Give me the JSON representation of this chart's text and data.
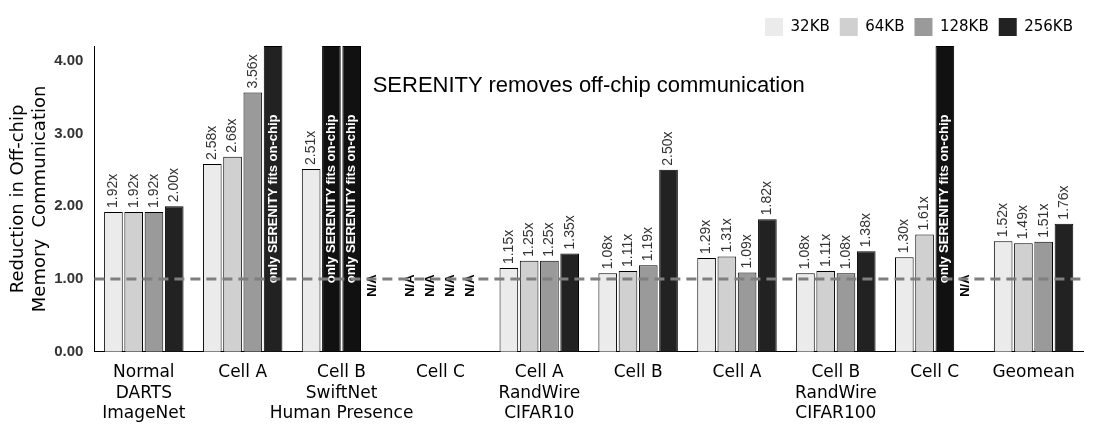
{
  "chart_data": {
    "type": "bar",
    "ylabel": "Reduction in Off-chip\nMemory  Communication",
    "categories": [
      "Normal\nDARTS\nImageNet",
      "Cell A",
      "Cell B\nSwiftNet\nHuman Presence",
      "Cell C",
      "Cell A\nRandWire\nCIFAR10",
      "Cell B",
      "Cell A",
      "Cell B\nRandWire\nCIFAR100",
      "Cell C",
      "Geomean"
    ],
    "series": [
      {
        "name": "32KB",
        "color": "#ebebeb",
        "values": [
          1.92,
          2.58,
          2.51,
          null,
          1.15,
          1.08,
          1.29,
          1.08,
          1.3,
          1.52
        ],
        "value_labels": [
          "1.92x",
          "2.58x",
          "2.51x",
          "N/A",
          "1.15x",
          "1.08x",
          "1.29x",
          "1.08x",
          "1.30x",
          "1.52x"
        ]
      },
      {
        "name": "64KB",
        "color": "#d0d0d0",
        "colors": [
          "#d0d0d0",
          "#d0d0d0",
          "#111111",
          "#d0d0d0",
          "#d0d0d0",
          "#d0d0d0",
          "#d0d0d0",
          "#d0d0d0",
          "#d0d0d0",
          "#d0d0d0"
        ],
        "values": [
          1.92,
          2.68,
          4.2,
          null,
          1.25,
          1.11,
          1.31,
          1.11,
          1.61,
          1.49
        ],
        "value_labels": [
          "1.92x",
          "2.68x",
          "only SERENITY fits on-chip",
          "N/A",
          "1.25x",
          "1.11x",
          "1.31x",
          "1.11x",
          "1.61x",
          "1.49x"
        ]
      },
      {
        "name": "128KB",
        "color": "#9a9a9a",
        "colors": [
          "#9a9a9a",
          "#9a9a9a",
          "#111111",
          "#9a9a9a",
          "#9a9a9a",
          "#9a9a9a",
          "#9a9a9a",
          "#9a9a9a",
          "#111111",
          "#9a9a9a"
        ],
        "values": [
          1.92,
          3.56,
          4.2,
          null,
          1.25,
          1.19,
          1.09,
          1.08,
          4.2,
          1.51
        ],
        "value_labels": [
          "1.92x",
          "3.56x",
          "only SERENITY fits on-chip",
          "N/A",
          "1.25x",
          "1.19x",
          "1.09x",
          "1.08x",
          "only SERENITY fits on-chip",
          "1.51x"
        ]
      },
      {
        "name": "256KB",
        "color": "#222222",
        "values": [
          2.0,
          4.2,
          null,
          null,
          1.35,
          2.5,
          1.82,
          1.38,
          null,
          1.76
        ],
        "value_labels": [
          "2.00x",
          "only SERENITY fits on-chip",
          "N/A",
          "N/A",
          "1.35x",
          "2.50x",
          "1.82x",
          "1.38x",
          "N/A",
          "1.76x"
        ]
      }
    ],
    "ylim": [
      0,
      4.2
    ],
    "yticks": [
      {
        "value": 0,
        "label": "0.00"
      },
      {
        "value": 1,
        "label": "1.00"
      },
      {
        "value": 2,
        "label": "2.00"
      },
      {
        "value": 3,
        "label": "3.00"
      },
      {
        "value": 4,
        "label": "4.00"
      }
    ],
    "ref_lines": [
      {
        "axis": "y",
        "value": 1,
        "color": "#7f7f7f",
        "line_style": "dashed"
      }
    ],
    "annotations": [
      "SERENITY removes off-chip communication"
    ],
    "legend": "top right",
    "grid": false
  }
}
